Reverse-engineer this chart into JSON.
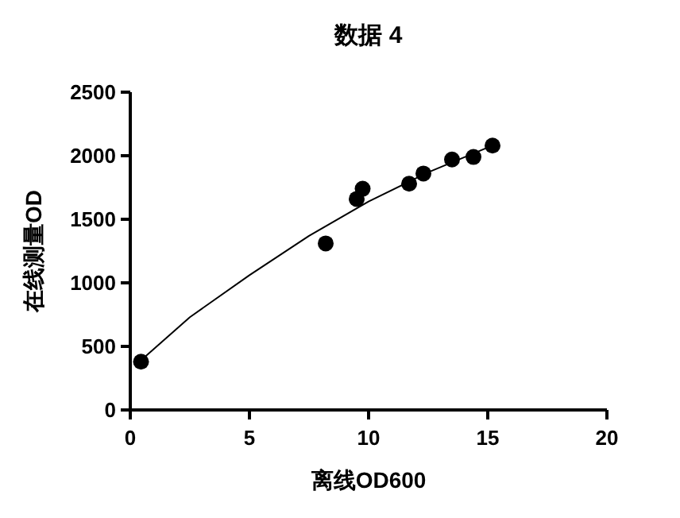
{
  "chart_data": {
    "type": "scatter",
    "title": "数据 4",
    "xlabel": "离线OD600",
    "ylabel": "在线测量OD",
    "xlim": [
      0,
      20
    ],
    "xticks": [
      0,
      5,
      10,
      15,
      20
    ],
    "ylim": [
      0,
      2500
    ],
    "yticks": [
      0,
      500,
      1000,
      1500,
      2000,
      2500
    ],
    "series": [
      {
        "marker": "circle",
        "color": "#000000",
        "x": [
          0.45,
          8.2,
          9.5,
          9.75,
          11.7,
          12.3,
          13.5,
          14.4,
          15.2
        ],
        "values": [
          380,
          1310,
          1660,
          1740,
          1780,
          1860,
          1970,
          1990,
          2080
        ]
      },
      {
        "type": "line",
        "marker": "none",
        "color": "#000000",
        "x": [
          0.45,
          2.5,
          5,
          7.5,
          10,
          12.5,
          15.2
        ],
        "values": [
          390,
          730,
          1060,
          1370,
          1640,
          1870,
          2080
        ]
      }
    ]
  }
}
